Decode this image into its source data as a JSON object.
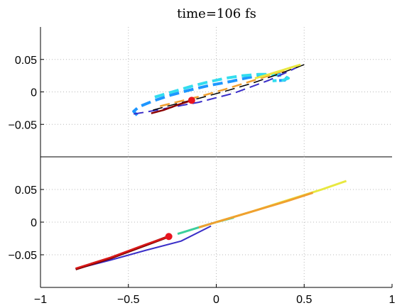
{
  "chart_data": {
    "type": "line",
    "title": "time=106 fs",
    "grid": true,
    "legend": "none",
    "x_ticks": [
      -1,
      -0.5,
      0,
      0.5,
      1
    ],
    "x_tick_labels": [
      "−1",
      "−0.5",
      "0",
      "0.5",
      "1"
    ],
    "y_ticks": [
      -0.05,
      0,
      0.05
    ],
    "y_tick_labels": [
      "−0.05",
      "0",
      "0.05"
    ],
    "panels": [
      {
        "name": "top",
        "xlim": [
          -1,
          1
        ],
        "ylim": [
          -0.1,
          0.1
        ],
        "marker": {
          "x": -0.14,
          "y": -0.013,
          "color": "#e8141e"
        },
        "series": [
          {
            "color": "#1e96ff",
            "style": "dash",
            "width": 4,
            "x": [
              -0.45,
              -0.47,
              -0.44,
              -0.36,
              -0.26,
              -0.15,
              -0.04,
              0.08,
              0.18,
              0.26,
              0.33,
              0.38,
              0.4,
              0.39,
              0.33
            ],
            "y": [
              -0.036,
              -0.03,
              -0.023,
              -0.014,
              -0.005,
              0.003,
              0.01,
              0.016,
              0.022,
              0.026,
              0.028,
              0.026,
              0.022,
              0.018,
              0.017
            ]
          },
          {
            "color": "#33ddee",
            "style": "dash",
            "width": 4,
            "x": [
              -0.35,
              -0.25,
              -0.15,
              -0.05,
              0.05,
              0.15,
              0.24,
              0.3,
              0.35,
              0.39,
              0.41,
              0.38,
              0.32
            ],
            "y": [
              -0.008,
              0.0,
              0.008,
              0.015,
              0.021,
              0.025,
              0.027,
              0.027,
              0.026,
              0.024,
              0.021,
              0.018,
              0.017
            ]
          },
          {
            "color": "#3a2ec8",
            "style": "dash",
            "width": 2,
            "x": [
              -0.47,
              -0.4,
              -0.3,
              -0.2,
              -0.1,
              0.0,
              0.1,
              0.2,
              0.3,
              0.4,
              0.49
            ],
            "y": [
              -0.034,
              -0.031,
              -0.026,
              -0.021,
              -0.016,
              -0.009,
              -0.002,
              0.008,
              0.018,
              0.03,
              0.042
            ]
          },
          {
            "color": "#000000",
            "style": "dash",
            "width": 1.5,
            "x": [
              -0.36,
              -0.25,
              -0.1,
              0.05,
              0.2,
              0.35,
              0.5
            ],
            "y": [
              -0.028,
              -0.02,
              -0.01,
              0.001,
              0.013,
              0.027,
              0.042
            ]
          },
          {
            "color": "#f0a030",
            "style": "dash",
            "width": 2.5,
            "x": [
              -0.32,
              -0.2,
              -0.08,
              0.05,
              0.18,
              0.3,
              0.42
            ],
            "y": [
              -0.022,
              -0.014,
              -0.006,
              0.004,
              0.015,
              0.025,
              0.036
            ]
          },
          {
            "color": "#e8e840",
            "style": "solid",
            "width": 3,
            "x": [
              0.22,
              0.3,
              0.36,
              0.42,
              0.48
            ],
            "y": [
              0.021,
              0.027,
              0.032,
              0.037,
              0.042
            ]
          },
          {
            "color": "#8a0000",
            "style": "solid",
            "width": 2.5,
            "x": [
              -0.37,
              -0.3,
              -0.22,
              -0.14
            ],
            "y": [
              -0.033,
              -0.028,
              -0.02,
              -0.013
            ]
          }
        ]
      },
      {
        "name": "bottom",
        "xlim": [
          -1,
          1
        ],
        "ylim": [
          -0.1,
          0.1
        ],
        "marker": {
          "x": -0.27,
          "y": -0.022,
          "color": "#e8141e"
        },
        "series": [
          {
            "color": "#3a2ec8",
            "style": "solid",
            "width": 2,
            "x": [
              -0.8,
              -0.6,
              -0.4,
              -0.2,
              -0.03
            ],
            "y": [
              -0.072,
              -0.058,
              -0.043,
              -0.029,
              -0.006
            ]
          },
          {
            "color": "#3ccf9c",
            "style": "solid",
            "width": 3,
            "x": [
              -0.22,
              -0.1,
              0.0,
              0.1
            ],
            "y": [
              -0.018,
              -0.008,
              0.0,
              0.007
            ]
          },
          {
            "color": "#e8e840",
            "style": "solid",
            "width": 3,
            "x": [
              0.0,
              0.2,
              0.4,
              0.6,
              0.74
            ],
            "y": [
              0.0,
              0.016,
              0.033,
              0.05,
              0.063
            ]
          },
          {
            "color": "#f0a030",
            "style": "solid",
            "width": 3,
            "x": [
              -0.1,
              0.0,
              0.2,
              0.4,
              0.55
            ],
            "y": [
              -0.008,
              0.0,
              0.016,
              0.032,
              0.045
            ]
          },
          {
            "color": "#7a0000",
            "style": "solid",
            "width": 3.5,
            "x": [
              -0.8,
              -0.6,
              -0.4,
              -0.27
            ],
            "y": [
              -0.072,
              -0.055,
              -0.035,
              -0.022
            ]
          },
          {
            "color": "#d81818",
            "style": "solid",
            "width": 2.5,
            "x": [
              -0.8,
              -0.6,
              -0.4,
              -0.28
            ],
            "y": [
              -0.071,
              -0.054,
              -0.034,
              -0.023
            ]
          }
        ]
      }
    ]
  }
}
